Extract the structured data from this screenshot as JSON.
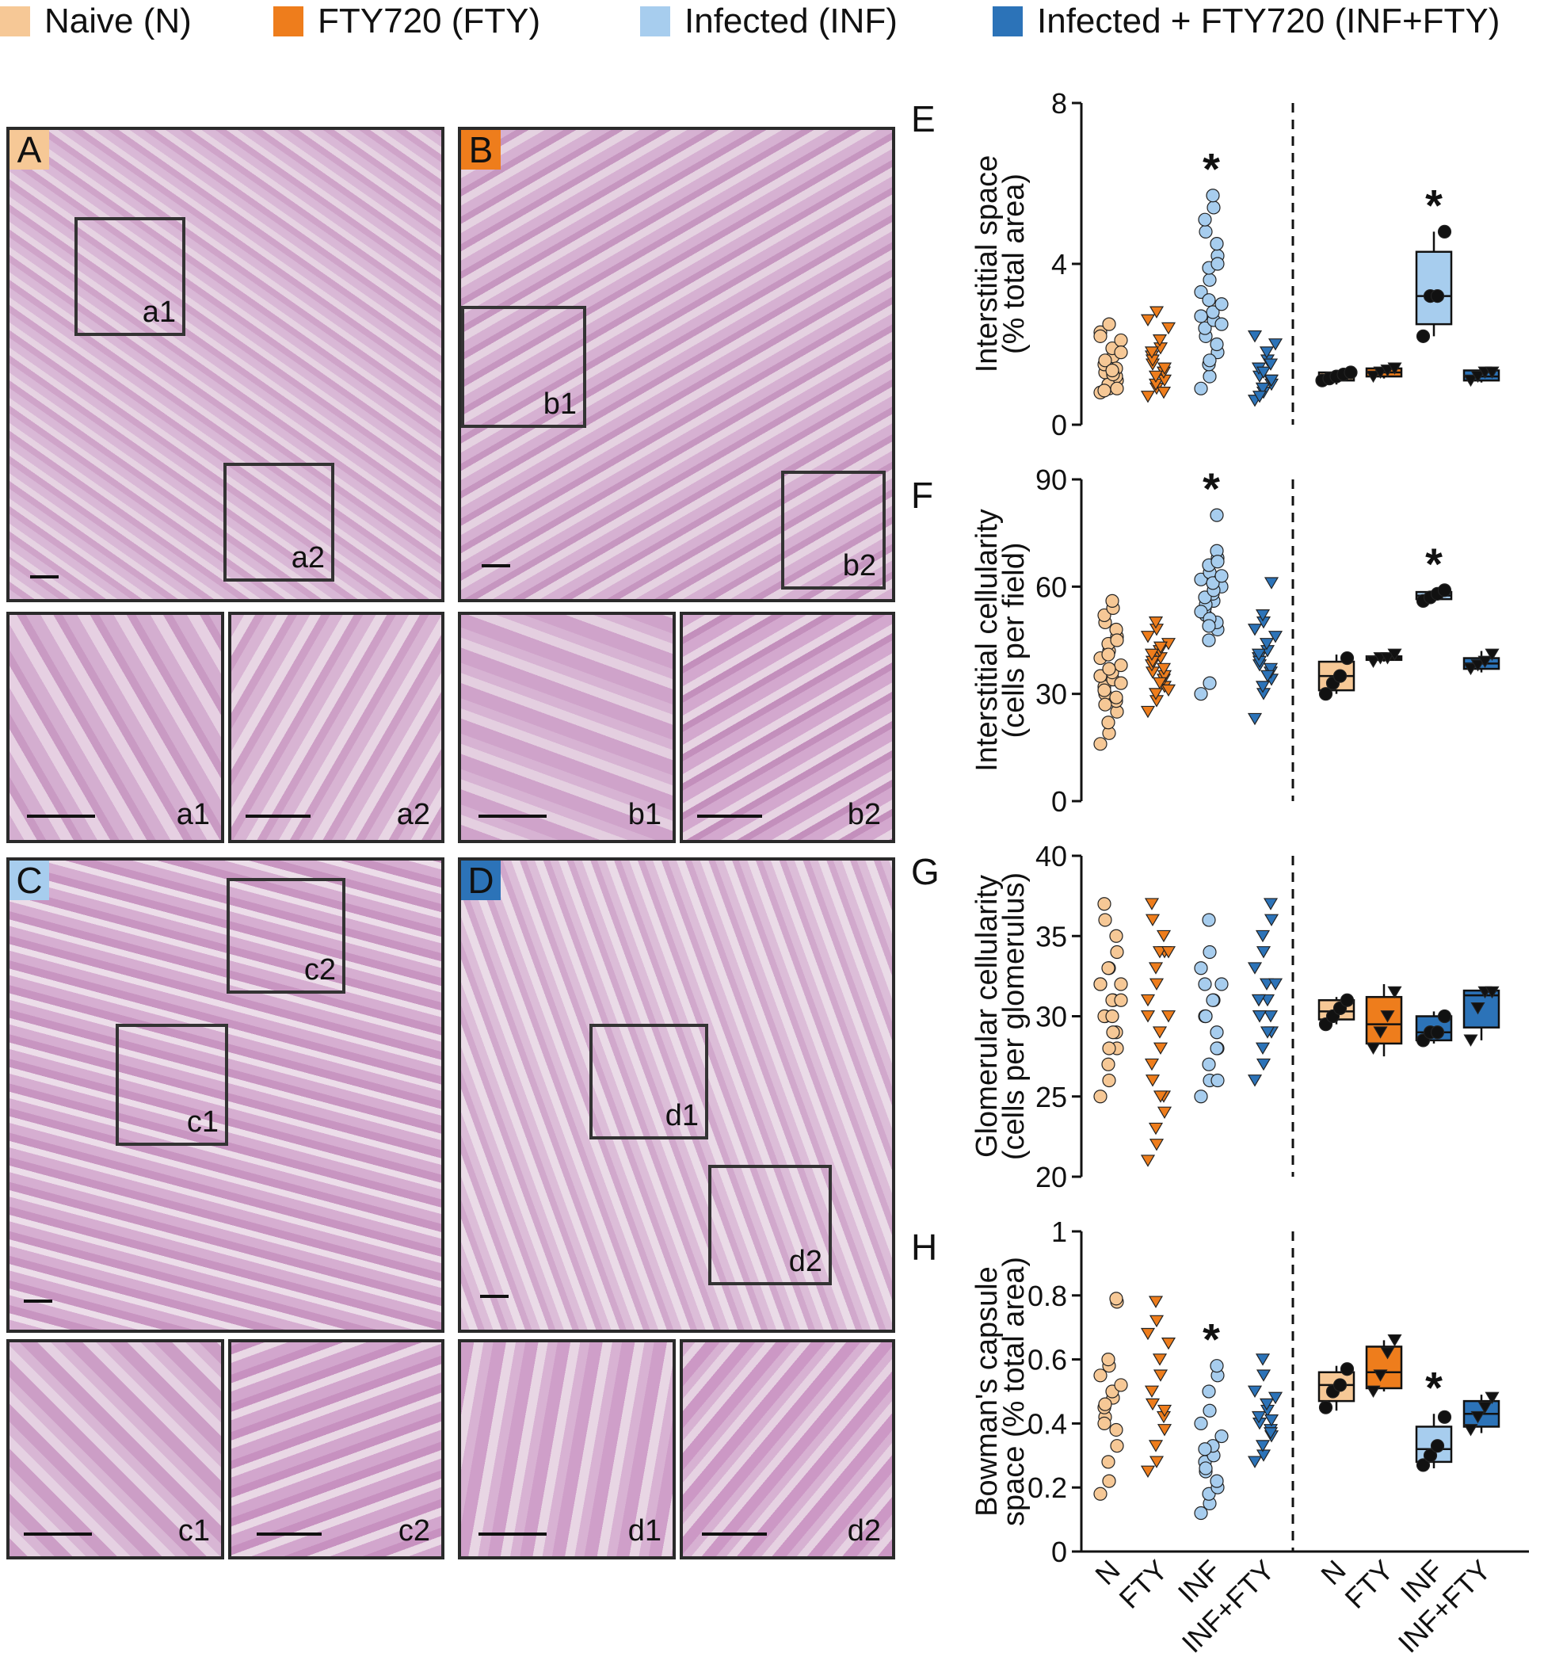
{
  "legend": [
    {
      "label": "Naive (N)",
      "color": "#f6c896"
    },
    {
      "label": "FTY720 (FTY)",
      "color": "#ee7d1c"
    },
    {
      "label": "Infected (INF)",
      "color": "#a7cdee"
    },
    {
      "label": "Infected + FTY720 (INF+FTY)",
      "color": "#2c73b8"
    }
  ],
  "micrographs": {
    "A": {
      "letter": "A",
      "letter_bg": "#f6c896",
      "insets": [
        "a1",
        "a2"
      ]
    },
    "B": {
      "letter": "B",
      "letter_bg": "#ee7d1c",
      "insets": [
        "b1",
        "b2"
      ]
    },
    "C": {
      "letter": "C",
      "letter_bg": "#a7cdee",
      "insets": [
        "c1",
        "c2"
      ]
    },
    "D": {
      "letter": "D",
      "letter_bg": "#2c73b8",
      "insets": [
        "d1",
        "d2"
      ]
    }
  },
  "chart_data": [
    {
      "panel": "E",
      "type": "scatter+box",
      "ylabel_line1": "Interstitial space",
      "ylabel_line2": "(% total area)",
      "ylim": [
        0,
        8
      ],
      "yticks": [
        0,
        4,
        8
      ],
      "divider": true,
      "groups": [
        {
          "values": [
            0.8,
            0.9,
            1.0,
            1.1,
            1.2,
            1.3,
            1.5,
            1.7,
            1.9,
            2.1,
            2.3,
            2.5,
            1.0,
            0.9,
            1.4,
            1.6,
            0.85,
            1.25,
            1.35,
            1.8,
            2.2
          ],
          "color": "#f6c896",
          "marker": "circle"
        },
        {
          "values": [
            0.7,
            0.9,
            1.0,
            1.1,
            1.3,
            1.5,
            1.7,
            1.9,
            2.1,
            2.4,
            2.6,
            2.8,
            1.2,
            1.4,
            0.8,
            1.6,
            1.8
          ],
          "color": "#ee7d1c",
          "marker": "tri"
        },
        {
          "values": [
            0.9,
            1.2,
            1.5,
            1.8,
            2.0,
            2.2,
            2.4,
            2.6,
            2.8,
            3.0,
            3.3,
            3.6,
            3.9,
            4.2,
            4.5,
            4.8,
            5.1,
            5.4,
            5.7,
            2.5,
            2.7,
            1.6,
            3.1,
            4.0
          ],
          "color": "#a7cdee",
          "marker": "circle",
          "star": true
        },
        {
          "values": [
            0.6,
            0.8,
            0.9,
            1.0,
            1.1,
            1.2,
            1.4,
            1.6,
            1.8,
            2.0,
            2.2,
            1.3,
            0.9,
            1.1,
            1.5,
            0.7
          ],
          "color": "#2c73b8",
          "marker": "tri"
        }
      ],
      "boxes": [
        {
          "values": [
            1.1,
            1.15,
            1.2,
            1.25,
            1.3
          ],
          "q1": 1.1,
          "med": 1.2,
          "q3": 1.3,
          "min": 1.0,
          "max": 1.35,
          "color": "#f6c896",
          "marker": "circle"
        },
        {
          "values": [
            1.2,
            1.3,
            1.35,
            1.4
          ],
          "q1": 1.2,
          "med": 1.3,
          "q3": 1.4,
          "min": 1.15,
          "max": 1.45,
          "color": "#ee7d1c",
          "marker": "tri"
        },
        {
          "values": [
            2.2,
            3.2,
            3.2,
            4.8
          ],
          "q1": 2.5,
          "med": 3.2,
          "q3": 4.3,
          "min": 2.2,
          "max": 4.8,
          "color": "#a7cdee",
          "marker": "circle",
          "star": true
        },
        {
          "values": [
            1.1,
            1.2,
            1.3,
            1.3
          ],
          "q1": 1.1,
          "med": 1.2,
          "q3": 1.35,
          "min": 1.05,
          "max": 1.4,
          "color": "#2c73b8",
          "marker": "tri"
        }
      ]
    },
    {
      "panel": "F",
      "type": "scatter+box",
      "ylabel_line1": "Interstitial cellularity",
      "ylabel_line2": "(cells per field)",
      "ylim": [
        0,
        90
      ],
      "yticks": [
        0,
        30,
        60,
        90
      ],
      "divider": true,
      "groups": [
        {
          "values": [
            16,
            19,
            22,
            25,
            28,
            30,
            32,
            34,
            36,
            38,
            40,
            42,
            44,
            46,
            48,
            50,
            52,
            54,
            56,
            33,
            35,
            37,
            41,
            45,
            29,
            27,
            31
          ],
          "color": "#f6c896",
          "marker": "circle"
        },
        {
          "values": [
            25,
            28,
            30,
            32,
            34,
            36,
            38,
            40,
            42,
            44,
            46,
            48,
            50,
            35,
            37,
            39,
            41,
            43,
            33,
            31
          ],
          "color": "#ee7d1c",
          "marker": "tri"
        },
        {
          "values": [
            30,
            33,
            45,
            48,
            50,
            52,
            54,
            56,
            58,
            60,
            62,
            64,
            66,
            68,
            70,
            55,
            57,
            59,
            61,
            63,
            53,
            51,
            49,
            67,
            80
          ],
          "color": "#a7cdee",
          "marker": "circle",
          "star": true
        },
        {
          "values": [
            23,
            30,
            32,
            34,
            36,
            38,
            40,
            42,
            44,
            46,
            48,
            50,
            52,
            61,
            37,
            39,
            41,
            35
          ],
          "color": "#2c73b8",
          "marker": "tri"
        }
      ],
      "boxes": [
        {
          "values": [
            30,
            33,
            35,
            40
          ],
          "q1": 31,
          "med": 35,
          "q3": 39,
          "min": 30,
          "max": 41,
          "color": "#f6c896",
          "marker": "circle"
        },
        {
          "values": [
            39,
            40,
            40,
            41
          ],
          "q1": 39.5,
          "med": 40,
          "q3": 40.5,
          "min": 39,
          "max": 41,
          "color": "#ee7d1c",
          "marker": "tri"
        },
        {
          "values": [
            56,
            57,
            58,
            59
          ],
          "q1": 56.5,
          "med": 57.5,
          "q3": 58.5,
          "min": 56,
          "max": 59,
          "color": "#a7cdee",
          "marker": "circle",
          "star": true
        },
        {
          "values": [
            37,
            38,
            39,
            41
          ],
          "q1": 37,
          "med": 38.5,
          "q3": 40,
          "min": 36,
          "max": 42,
          "color": "#2c73b8",
          "marker": "tri"
        }
      ]
    },
    {
      "panel": "G",
      "type": "scatter+box",
      "ylabel_line1": "Glomerular cellularity",
      "ylabel_line2": "(cells per glomerulus)",
      "ylim": [
        20,
        40
      ],
      "yticks": [
        20,
        25,
        30,
        35,
        40
      ],
      "divider": true,
      "groups": [
        {
          "values": [
            25,
            26,
            27,
            28,
            29,
            30,
            30,
            31,
            31,
            32,
            32,
            33,
            33,
            34,
            35,
            36,
            37,
            29,
            30,
            31,
            32,
            28
          ],
          "color": "#f6c896",
          "marker": "circle"
        },
        {
          "values": [
            21,
            22,
            23,
            24,
            25,
            26,
            27,
            28,
            29,
            30,
            31,
            32,
            33,
            34,
            35,
            36,
            37,
            25,
            34,
            34,
            30
          ],
          "color": "#ee7d1c",
          "marker": "tri"
        },
        {
          "values": [
            25,
            26,
            27,
            28,
            29,
            30,
            30,
            31,
            31,
            32,
            33,
            34,
            36,
            26,
            28,
            30,
            32
          ],
          "color": "#a7cdee",
          "marker": "circle"
        },
        {
          "values": [
            26,
            27,
            28,
            29,
            30,
            30,
            31,
            31,
            32,
            32,
            33,
            34,
            35,
            36,
            37,
            30,
            31,
            29
          ],
          "color": "#2c73b8",
          "marker": "tri"
        }
      ],
      "boxes": [
        {
          "values": [
            29.5,
            30,
            30.5,
            31
          ],
          "q1": 29.8,
          "med": 30.3,
          "q3": 31,
          "min": 29.5,
          "max": 31.2,
          "color": "#f6c896",
          "marker": "circle"
        },
        {
          "values": [
            28,
            29,
            30,
            31.5
          ],
          "q1": 28.3,
          "med": 29.5,
          "q3": 31.2,
          "min": 27.5,
          "max": 32,
          "color": "#ee7d1c",
          "marker": "tri"
        },
        {
          "values": [
            28.5,
            29,
            29,
            30
          ],
          "q1": 28.5,
          "med": 29,
          "q3": 30,
          "min": 28.3,
          "max": 30.3,
          "color": "#2c73b8",
          "marker": "circle"
        },
        {
          "values": [
            28.5,
            30.5,
            31.5,
            31.5
          ],
          "q1": 29.3,
          "med": 31.3,
          "q3": 31.6,
          "min": 28.5,
          "max": 31.8,
          "color": "#2c73b8",
          "marker": "tri"
        }
      ]
    },
    {
      "panel": "H",
      "type": "scatter+box",
      "ylabel_line1": "Bowman's capsule",
      "ylabel_line2": "space (% total area)",
      "ylim": [
        0,
        1
      ],
      "yticks": [
        0,
        0.2,
        0.4,
        0.6,
        0.8,
        1.0
      ],
      "divider": true,
      "categories": [
        "N",
        "FTY",
        "INF",
        "INF+FTY",
        "N",
        "FTY",
        "INF",
        "INF+FTY"
      ],
      "groups": [
        {
          "values": [
            0.18,
            0.22,
            0.28,
            0.33,
            0.38,
            0.42,
            0.45,
            0.48,
            0.5,
            0.52,
            0.55,
            0.58,
            0.6,
            0.78,
            0.79,
            0.46,
            0.4
          ],
          "color": "#f6c896",
          "marker": "circle"
        },
        {
          "values": [
            0.25,
            0.28,
            0.33,
            0.38,
            0.42,
            0.46,
            0.5,
            0.55,
            0.6,
            0.65,
            0.68,
            0.72,
            0.78,
            0.44
          ],
          "color": "#ee7d1c",
          "marker": "tri"
        },
        {
          "values": [
            0.12,
            0.15,
            0.18,
            0.2,
            0.22,
            0.25,
            0.28,
            0.3,
            0.33,
            0.36,
            0.4,
            0.44,
            0.5,
            0.55,
            0.58,
            0.26,
            0.32
          ],
          "color": "#a7cdee",
          "marker": "circle",
          "star": true
        },
        {
          "values": [
            0.28,
            0.3,
            0.33,
            0.36,
            0.38,
            0.4,
            0.42,
            0.44,
            0.46,
            0.48,
            0.5,
            0.55,
            0.6,
            0.41,
            0.37
          ],
          "color": "#2c73b8",
          "marker": "tri"
        }
      ],
      "boxes": [
        {
          "values": [
            0.45,
            0.5,
            0.52,
            0.57
          ],
          "q1": 0.47,
          "med": 0.52,
          "q3": 0.56,
          "min": 0.44,
          "max": 0.58,
          "color": "#f6c896",
          "marker": "circle"
        },
        {
          "values": [
            0.5,
            0.55,
            0.62,
            0.66
          ],
          "q1": 0.51,
          "med": 0.56,
          "q3": 0.64,
          "min": 0.5,
          "max": 0.66,
          "color": "#ee7d1c",
          "marker": "tri"
        },
        {
          "values": [
            0.27,
            0.3,
            0.33,
            0.42
          ],
          "q1": 0.28,
          "med": 0.32,
          "q3": 0.39,
          "min": 0.26,
          "max": 0.43,
          "color": "#a7cdee",
          "marker": "circle",
          "star": true
        },
        {
          "values": [
            0.38,
            0.42,
            0.45,
            0.48
          ],
          "q1": 0.39,
          "med": 0.43,
          "q3": 0.47,
          "min": 0.37,
          "max": 0.49,
          "color": "#2c73b8",
          "marker": "tri"
        }
      ]
    }
  ],
  "star_symbol": "*"
}
